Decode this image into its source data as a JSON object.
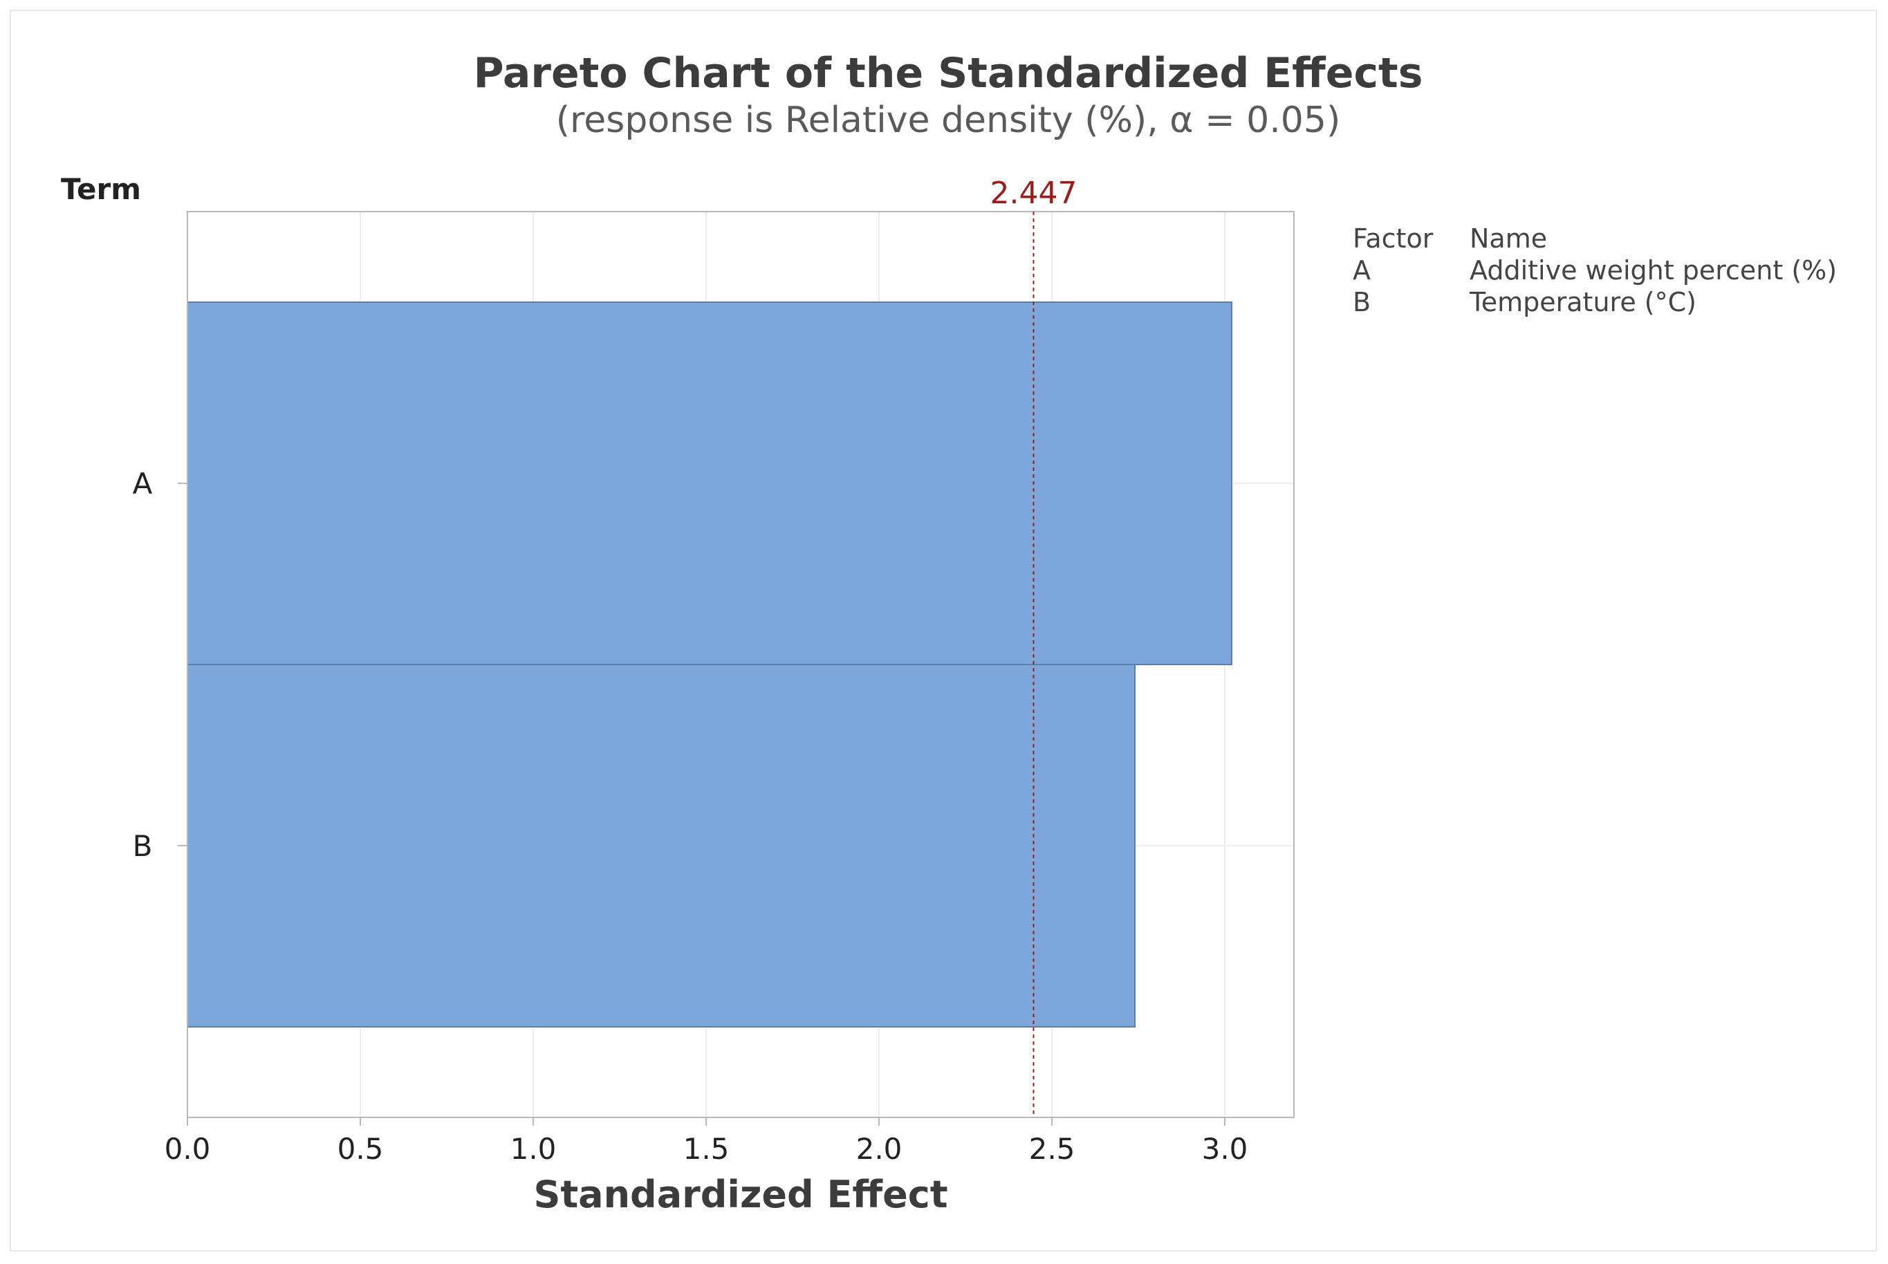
{
  "chart_data": {
    "type": "bar",
    "orientation": "horizontal",
    "title": "Pareto Chart of the Standardized Effects",
    "subtitle": "(response is Relative density (%), α = 0.05)",
    "xlabel": "Standardized Effect",
    "ylabel": "Term",
    "categories": [
      "A",
      "B"
    ],
    "values": [
      3.02,
      2.74
    ],
    "xlim": [
      0,
      3.2
    ],
    "xticks": [
      "0.0",
      "0.5",
      "1.0",
      "1.5",
      "2.0",
      "2.5",
      "3.0"
    ],
    "reference_line": {
      "value": 2.447,
      "label": "2.447",
      "color": "#9b1c1c",
      "style": "dashed"
    },
    "bar_color": "#7da7d9",
    "grid": true,
    "legend": {
      "placement": "right",
      "header": {
        "factor": "Factor",
        "name": "Name"
      },
      "rows": [
        {
          "factor": "A",
          "name": "Additive weight percent (%)"
        },
        {
          "factor": "B",
          "name": "Temperature (°C)"
        }
      ]
    }
  }
}
